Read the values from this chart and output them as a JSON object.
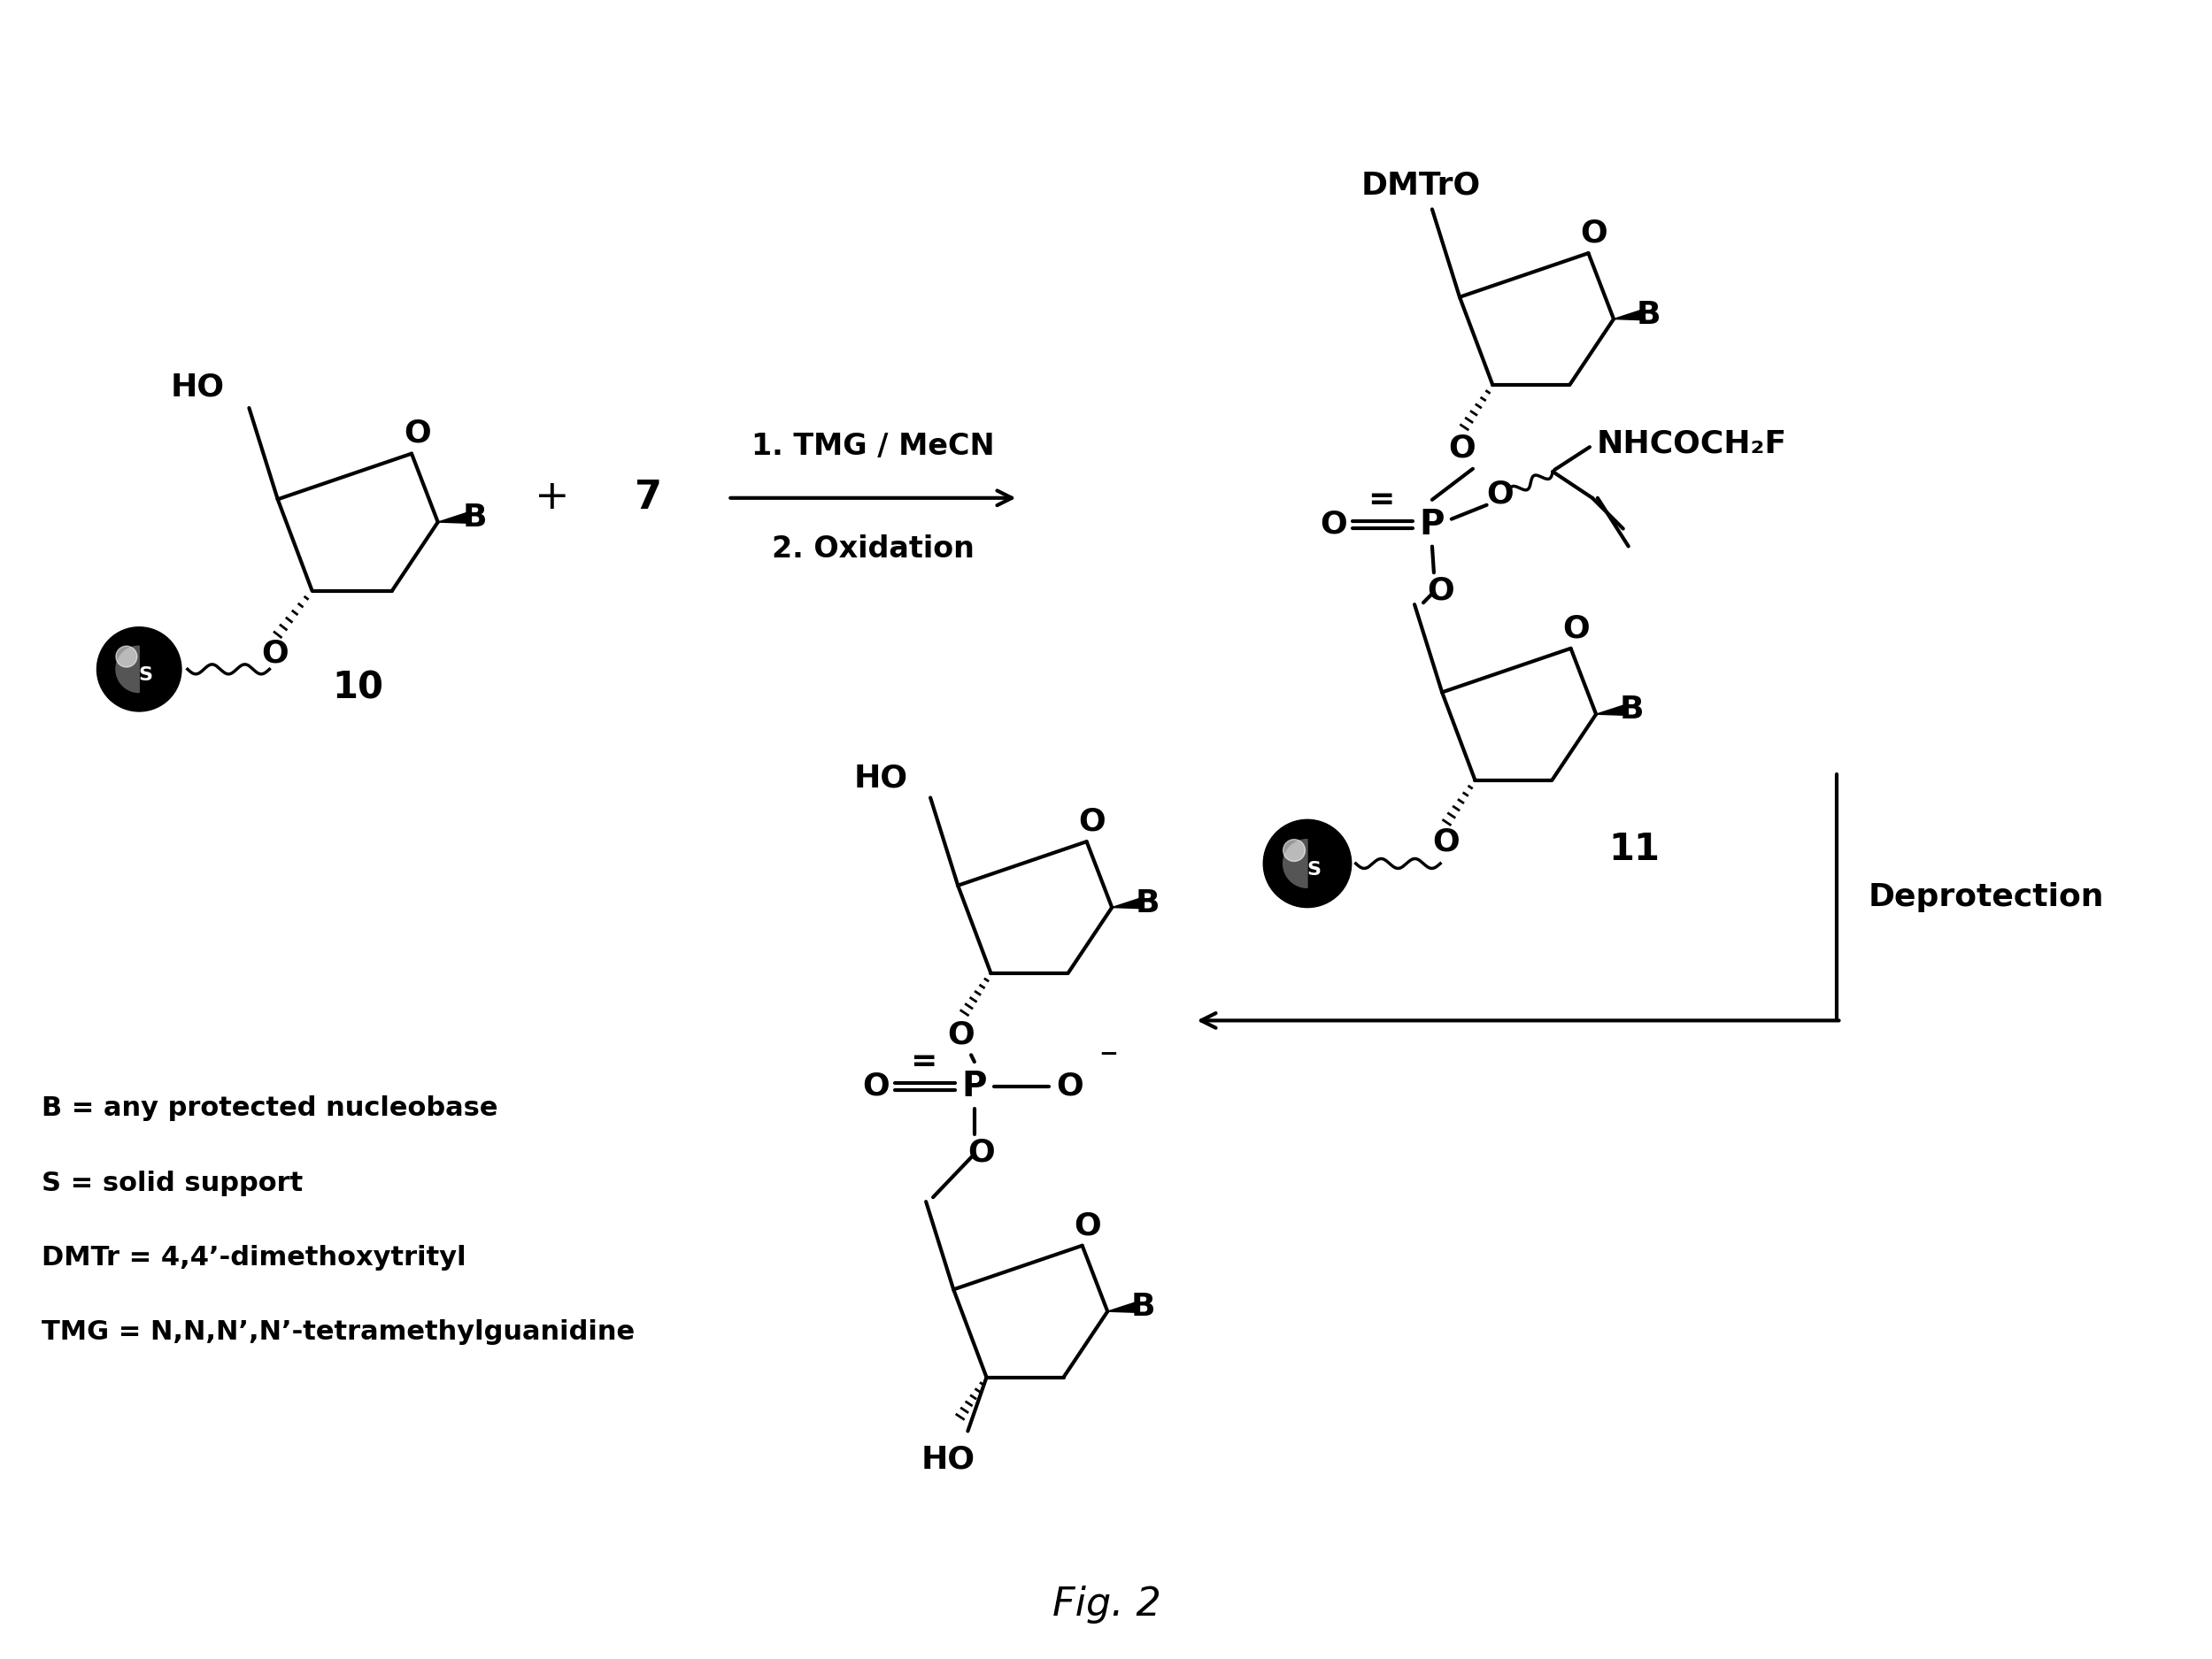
{
  "fig_label": "Fig. 2",
  "background": "#ffffff",
  "legend_lines": [
    "B = any protected nucleobase",
    "S = solid support",
    "DMTr = 4,4’-dimethoxytrityl",
    "TMG = N,N,N’,N’-tetramethylguanidine"
  ],
  "compound_10_label": "10",
  "compound_11_label": "11",
  "compound_7_label": "7",
  "reaction_step1": "1. TMG / MeCN",
  "reaction_step2": "2. Oxidation",
  "deprotection_label": "Deprotection"
}
